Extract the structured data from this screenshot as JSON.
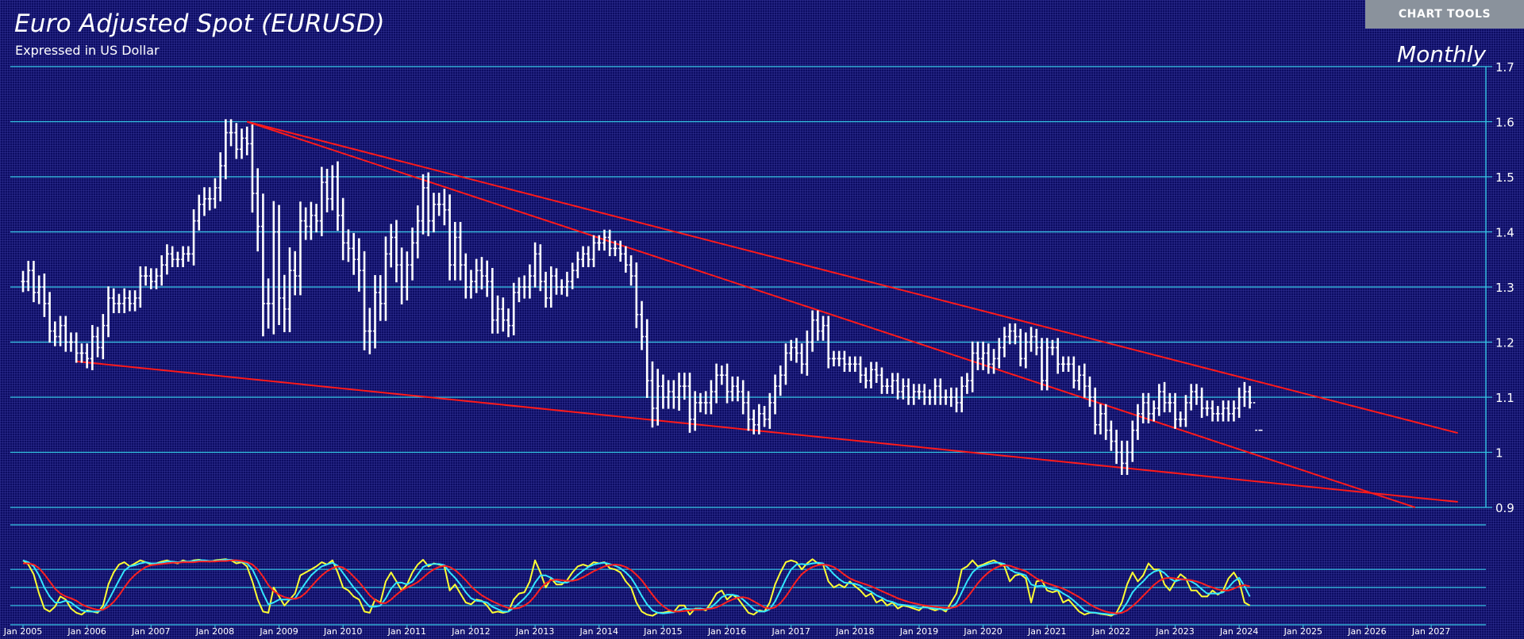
{
  "title": "Euro Adjusted Spot (EURUSD)",
  "subtitle": "Expressed in US Dollar",
  "toolbar": {
    "chart_tools_label": "CHART TOOLS"
  },
  "period": "Monthly",
  "colors": {
    "background": "#0c0c62",
    "gridline": "#35c8e6",
    "bar": "#ffffff",
    "trendline": "#ff1a1a",
    "osc_yellow": "#ffff33",
    "osc_cyan": "#33e6ff",
    "osc_red": "#ff2020"
  },
  "chart_data": {
    "type": "ohlc",
    "period": "monthly",
    "y_axis": {
      "position": "right",
      "ylim": [
        0.9,
        1.7
      ],
      "ticks": [
        "0.9",
        "1",
        "1.1",
        "1.2",
        "1.3",
        "1.4",
        "1.5",
        "1.6",
        "1.7"
      ]
    },
    "x_axis": {
      "range": [
        "2004-12",
        "2027-06"
      ],
      "ticks": [
        "Jan 2005",
        "Jan 2006",
        "Jan 2007",
        "Jan 2008",
        "Jan 2009",
        "Jan 2010",
        "Jan 2011",
        "Jan 2012",
        "Jan 2013",
        "Jan 2014",
        "Jan 2015",
        "Jan 2016",
        "Jan 2017",
        "Jan 2018",
        "Jan 2019",
        "Jan 2020",
        "Jan 2021",
        "Jan 2022",
        "Jan 2023",
        "Jan 2024",
        "Jan 2025",
        "Jan 2026",
        "Jan 2027"
      ]
    },
    "grid": true,
    "start_month": "2005-01",
    "closes": [
      1.31,
      1.33,
      1.29,
      1.3,
      1.27,
      1.22,
      1.21,
      1.23,
      1.2,
      1.2,
      1.18,
      1.18,
      1.17,
      1.21,
      1.19,
      1.23,
      1.28,
      1.27,
      1.27,
      1.28,
      1.27,
      1.28,
      1.32,
      1.32,
      1.31,
      1.32,
      1.34,
      1.36,
      1.35,
      1.35,
      1.36,
      1.36,
      1.42,
      1.45,
      1.46,
      1.46,
      1.48,
      1.52,
      1.58,
      1.58,
      1.55,
      1.57,
      1.56,
      1.47,
      1.41,
      1.27,
      1.27,
      1.4,
      1.28,
      1.26,
      1.33,
      1.32,
      1.42,
      1.41,
      1.43,
      1.42,
      1.49,
      1.46,
      1.5,
      1.43,
      1.38,
      1.37,
      1.35,
      1.33,
      1.22,
      1.22,
      1.29,
      1.27,
      1.36,
      1.39,
      1.34,
      1.3,
      1.34,
      1.38,
      1.42,
      1.48,
      1.42,
      1.45,
      1.45,
      1.44,
      1.34,
      1.39,
      1.34,
      1.3,
      1.31,
      1.33,
      1.32,
      1.31,
      1.24,
      1.26,
      1.24,
      1.23,
      1.29,
      1.3,
      1.3,
      1.32,
      1.36,
      1.31,
      1.28,
      1.32,
      1.3,
      1.3,
      1.31,
      1.33,
      1.35,
      1.36,
      1.35,
      1.38,
      1.38,
      1.39,
      1.37,
      1.37,
      1.36,
      1.34,
      1.32,
      1.25,
      1.21,
      1.13,
      1.08,
      1.12,
      1.1,
      1.11,
      1.1,
      1.12,
      1.12,
      1.06,
      1.09,
      1.09,
      1.09,
      1.11,
      1.14,
      1.14,
      1.11,
      1.12,
      1.11,
      1.09,
      1.06,
      1.05,
      1.07,
      1.06,
      1.09,
      1.12,
      1.14,
      1.18,
      1.19,
      1.18,
      1.16,
      1.2,
      1.24,
      1.22,
      1.23,
      1.17,
      1.17,
      1.17,
      1.16,
      1.16,
      1.16,
      1.14,
      1.13,
      1.15,
      1.14,
      1.12,
      1.12,
      1.13,
      1.11,
      1.12,
      1.1,
      1.11,
      1.11,
      1.1,
      1.1,
      1.12,
      1.1,
      1.1,
      1.1,
      1.09,
      1.12,
      1.13,
      1.18,
      1.17,
      1.18,
      1.16,
      1.17,
      1.19,
      1.21,
      1.22,
      1.21,
      1.17,
      1.2,
      1.21,
      1.19,
      1.13,
      1.19,
      1.19,
      1.16,
      1.16,
      1.16,
      1.13,
      1.14,
      1.12,
      1.1,
      1.05,
      1.07,
      1.04,
      1.02,
      1.0,
      0.98,
      1.0,
      1.04,
      1.07,
      1.09,
      1.07,
      1.08,
      1.11,
      1.09,
      1.09,
      1.06,
      1.06,
      1.09,
      1.11,
      1.1,
      1.08,
      1.08,
      1.07,
      1.07,
      1.08,
      1.07,
      1.08,
      1.1,
      1.11,
      1.09,
      1.04,
      1.04
    ],
    "ranges": [
      0.055,
      0.05,
      0.05,
      0.06,
      0.07,
      0.06,
      0.05,
      0.05,
      0.05,
      0.05,
      0.05,
      0.05,
      0.05,
      0.06,
      0.05,
      0.06,
      0.06,
      0.05,
      0.05,
      0.05,
      0.04,
      0.04,
      0.05,
      0.05,
      0.04,
      0.04,
      0.05,
      0.05,
      0.04,
      0.04,
      0.04,
      0.04,
      0.06,
      0.05,
      0.06,
      0.06,
      0.05,
      0.07,
      0.07,
      0.07,
      0.05,
      0.05,
      0.06,
      0.1,
      0.13,
      0.17,
      0.13,
      0.16,
      0.14,
      0.12,
      0.12,
      0.1,
      0.1,
      0.07,
      0.07,
      0.06,
      0.08,
      0.07,
      0.06,
      0.08,
      0.09,
      0.07,
      0.08,
      0.11,
      0.1,
      0.12,
      0.09,
      0.09,
      0.09,
      0.07,
      0.09,
      0.09,
      0.07,
      0.08,
      0.08,
      0.07,
      0.08,
      0.06,
      0.06,
      0.08,
      0.08,
      0.08,
      0.08,
      0.06,
      0.06,
      0.06,
      0.07,
      0.08,
      0.07,
      0.07,
      0.06,
      0.06,
      0.05,
      0.05,
      0.06,
      0.06,
      0.06,
      0.05,
      0.05,
      0.05,
      0.04,
      0.04,
      0.05,
      0.04,
      0.04,
      0.04,
      0.04,
      0.04,
      0.04,
      0.04,
      0.04,
      0.04,
      0.04,
      0.04,
      0.05,
      0.07,
      0.07,
      0.09,
      0.1,
      0.09,
      0.06,
      0.06,
      0.06,
      0.07,
      0.07,
      0.07,
      0.06,
      0.05,
      0.06,
      0.06,
      0.06,
      0.05,
      0.06,
      0.05,
      0.05,
      0.06,
      0.06,
      0.05,
      0.05,
      0.04,
      0.05,
      0.06,
      0.05,
      0.05,
      0.04,
      0.05,
      0.05,
      0.06,
      0.05,
      0.05,
      0.05,
      0.05,
      0.04,
      0.04,
      0.04,
      0.04,
      0.04,
      0.04,
      0.04,
      0.04,
      0.04,
      0.04,
      0.04,
      0.04,
      0.04,
      0.04,
      0.04,
      0.04,
      0.04,
      0.04,
      0.04,
      0.04,
      0.04,
      0.04,
      0.05,
      0.05,
      0.05,
      0.04,
      0.06,
      0.06,
      0.06,
      0.05,
      0.05,
      0.05,
      0.05,
      0.04,
      0.04,
      0.04,
      0.05,
      0.05,
      0.04,
      0.05,
      0.05,
      0.04,
      0.05,
      0.04,
      0.04,
      0.04,
      0.05,
      0.06,
      0.05,
      0.05,
      0.05,
      0.05,
      0.05,
      0.06,
      0.06,
      0.06,
      0.05,
      0.05,
      0.05,
      0.05,
      0.04,
      0.04,
      0.05,
      0.05,
      0.05,
      0.04,
      0.04,
      0.04,
      0.04,
      0.05,
      0.04,
      0.04,
      0.04,
      0.04,
      0.04,
      0.04,
      0.05,
      0.05,
      0.03
    ],
    "trendlines": [
      {
        "from": [
          "2008-07",
          1.6
        ],
        "to": [
          "2027-06",
          1.035
        ]
      },
      {
        "from": [
          "2008-07",
          1.6
        ],
        "to": [
          "2026-10",
          0.9
        ]
      },
      {
        "from": [
          "2005-11",
          1.165
        ],
        "to": [
          "2027-06",
          0.91
        ]
      }
    ],
    "oscillator": {
      "range": [
        0,
        100
      ],
      "levels": [
        20,
        50,
        80
      ],
      "series": [
        {
          "color": "#ffff33",
          "values": [
            95,
            88,
            72,
            40,
            15,
            10,
            18,
            35,
            30,
            15,
            8,
            5,
            12,
            10,
            8,
            20,
            55,
            75,
            88,
            92,
            85,
            90,
            95,
            92,
            88,
            90,
            93,
            95,
            92,
            90,
            95,
            92,
            95,
            96,
            94,
            93,
            95,
            96,
            97,
            95,
            90,
            92,
            85,
            60,
            30,
            10,
            8,
            50,
            35,
            20,
            30,
            40,
            70,
            75,
            80,
            85,
            92,
            88,
            95,
            75,
            50,
            45,
            35,
            30,
            10,
            8,
            30,
            25,
            60,
            75,
            60,
            45,
            55,
            75,
            88,
            96,
            85,
            90,
            88,
            85,
            45,
            55,
            40,
            25,
            22,
            30,
            28,
            20,
            8,
            10,
            8,
            10,
            30,
            40,
            42,
            60,
            95,
            75,
            50,
            65,
            55,
            55,
            62,
            75,
            85,
            88,
            85,
            92,
            90,
            92,
            82,
            80,
            75,
            60,
            50,
            25,
            10,
            5,
            3,
            8,
            8,
            10,
            9,
            20,
            20,
            5,
            15,
            15,
            12,
            25,
            40,
            45,
            30,
            38,
            32,
            20,
            8,
            5,
            12,
            10,
            25,
            55,
            75,
            92,
            95,
            92,
            80,
            90,
            97,
            90,
            88,
            60,
            50,
            55,
            50,
            60,
            52,
            45,
            35,
            40,
            25,
            30,
            20,
            25,
            15,
            20,
            18,
            15,
            12,
            20,
            15,
            12,
            15,
            10,
            25,
            40,
            80,
            85,
            95,
            85,
            88,
            92,
            95,
            90,
            85,
            60,
            70,
            72,
            65,
            25,
            60,
            62,
            45,
            42,
            45,
            25,
            30,
            20,
            10,
            5,
            8,
            8,
            6,
            5,
            3,
            8,
            25,
            55,
            75,
            60,
            70,
            90,
            80,
            80,
            55,
            45,
            60,
            72,
            65,
            45,
            45,
            35,
            35,
            45,
            38,
            45,
            65,
            75,
            60,
            25,
            20
          ]
        },
        {
          "color": "#33e6ff",
          "values": [
            95,
            92,
            85,
            70,
            50,
            35,
            25,
            25,
            28,
            25,
            18,
            12,
            10,
            10,
            10,
            14,
            28,
            45,
            62,
            78,
            85,
            87,
            90,
            92,
            90,
            90,
            91,
            93,
            93,
            92,
            93,
            93,
            94,
            95,
            95,
            94,
            94,
            95,
            96,
            96,
            94,
            93,
            90,
            80,
            62,
            40,
            22,
            25,
            30,
            30,
            30,
            32,
            45,
            58,
            70,
            78,
            85,
            88,
            91,
            86,
            74,
            62,
            50,
            40,
            28,
            18,
            18,
            20,
            32,
            48,
            58,
            58,
            55,
            60,
            72,
            84,
            88,
            89,
            89,
            87,
            75,
            66,
            55,
            42,
            32,
            28,
            27,
            25,
            18,
            14,
            10,
            10,
            16,
            24,
            32,
            42,
            58,
            70,
            70,
            66,
            60,
            58,
            58,
            63,
            71,
            78,
            84,
            88,
            90,
            91,
            89,
            86,
            82,
            75,
            66,
            52,
            36,
            22,
            12,
            8,
            7,
            8,
            9,
            12,
            15,
            14,
            14,
            15,
            14,
            17,
            25,
            34,
            38,
            38,
            36,
            30,
            22,
            14,
            10,
            10,
            14,
            27,
            45,
            64,
            80,
            88,
            89,
            88,
            90,
            91,
            90,
            82,
            72,
            64,
            58,
            57,
            56,
            53,
            47,
            43,
            37,
            33,
            28,
            26,
            22,
            21,
            20,
            18,
            16,
            17,
            16,
            15,
            14,
            13,
            16,
            24,
            42,
            60,
            75,
            83,
            86,
            89,
            91,
            91,
            89,
            80,
            75,
            73,
            70,
            55,
            52,
            53,
            50,
            47,
            46,
            40,
            35,
            28,
            20,
            12,
            9,
            8,
            7,
            6,
            5,
            6,
            12,
            25,
            42,
            52,
            60,
            70,
            76,
            79,
            74,
            65,
            60,
            63,
            64,
            60,
            55,
            47,
            40,
            40,
            40,
            42,
            50,
            60,
            66,
            52,
            35
          ]
        },
        {
          "color": "#ff2020",
          "values": [
            90,
            90,
            88,
            82,
            72,
            60,
            48,
            40,
            35,
            32,
            28,
            22,
            18,
            15,
            13,
            13,
            18,
            26,
            37,
            50,
            62,
            71,
            78,
            84,
            87,
            88,
            89,
            90,
            91,
            91,
            92,
            92,
            92,
            93,
            93,
            93,
            93,
            94,
            94,
            95,
            95,
            94,
            92,
            88,
            80,
            68,
            54,
            44,
            38,
            34,
            32,
            31,
            34,
            41,
            51,
            61,
            70,
            77,
            82,
            85,
            83,
            77,
            68,
            59,
            48,
            37,
            29,
            24,
            24,
            30,
            38,
            45,
            50,
            54,
            59,
            66,
            74,
            80,
            84,
            86,
            84,
            79,
            71,
            62,
            52,
            44,
            37,
            32,
            27,
            23,
            19,
            16,
            15,
            16,
            20,
            26,
            36,
            48,
            57,
            62,
            63,
            62,
            61,
            61,
            63,
            67,
            72,
            77,
            81,
            85,
            87,
            88,
            87,
            84,
            79,
            71,
            62,
            50,
            38,
            27,
            19,
            13,
            10,
            10,
            11,
            12,
            13,
            13,
            14,
            15,
            17,
            21,
            26,
            30,
            33,
            34,
            32,
            27,
            22,
            17,
            15,
            17,
            24,
            35,
            48,
            61,
            72,
            79,
            84,
            87,
            88,
            87,
            84,
            78,
            71,
            65,
            61,
            58,
            55,
            52,
            48,
            44,
            40,
            36,
            32,
            29,
            26,
            24,
            22,
            20,
            19,
            18,
            17,
            16,
            16,
            18,
            24,
            33,
            45,
            57,
            67,
            75,
            81,
            85,
            87,
            86,
            83,
            80,
            77,
            71,
            65,
            60,
            57,
            54,
            51,
            48,
            44,
            39,
            34,
            28,
            22,
            17,
            13,
            10,
            8,
            7,
            8,
            12,
            19,
            27,
            36,
            45,
            54,
            61,
            65,
            66,
            65,
            64,
            63,
            62,
            60,
            57,
            53,
            50,
            47,
            45,
            45,
            48,
            52,
            54,
            52
          ]
        }
      ]
    }
  }
}
